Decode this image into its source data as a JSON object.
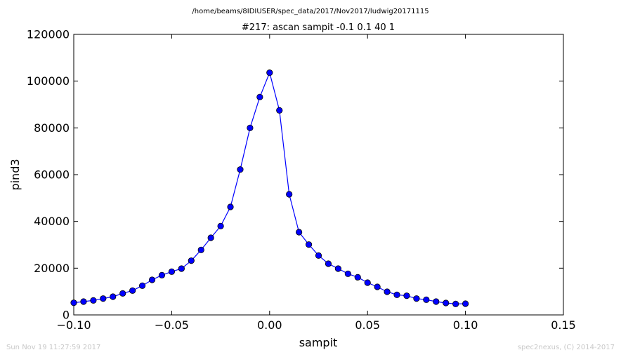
{
  "header": {
    "path": "/home/beams/8IDIUSER/spec_data/2017/Nov2017/ludwig20171115"
  },
  "footer": {
    "timestamp": "Sun Nov 19 11:27:59 2017",
    "credit": "spec2nexus, (C) 2014-2017"
  },
  "chart_data": {
    "type": "line",
    "title": "#217: ascan  sampit -0.1 0.1  40 1",
    "xlabel": "sampit",
    "ylabel": "pind3",
    "xlim": [
      -0.1,
      0.15
    ],
    "ylim": [
      0,
      120000
    ],
    "x_ticks": [
      -0.1,
      -0.05,
      0.0,
      0.05,
      0.1,
      0.15
    ],
    "x_tick_labels": [
      "−0.10",
      "−0.05",
      "0.00",
      "0.05",
      "0.10",
      "0.15"
    ],
    "y_ticks": [
      0,
      20000,
      40000,
      60000,
      80000,
      100000,
      120000
    ],
    "y_tick_labels": [
      "0",
      "20000",
      "40000",
      "60000",
      "80000",
      "100000",
      "120000"
    ],
    "grid": false,
    "series": [
      {
        "color": "#0000ff",
        "marker": "circle",
        "x": [
          -0.1,
          -0.095,
          -0.09,
          -0.085,
          -0.08,
          -0.075,
          -0.07,
          -0.065,
          -0.06,
          -0.055,
          -0.05,
          -0.045,
          -0.04,
          -0.035,
          -0.03,
          -0.025,
          -0.02,
          -0.015,
          -0.01,
          -0.005,
          0.0,
          0.005,
          0.01,
          0.015,
          0.02,
          0.025,
          0.03,
          0.035,
          0.04,
          0.045,
          0.05,
          0.055,
          0.06,
          0.065,
          0.07,
          0.075,
          0.08,
          0.085,
          0.09,
          0.095,
          0.1
        ],
        "y": [
          5200,
          5700,
          6200,
          7000,
          7800,
          9200,
          10400,
          12500,
          15000,
          17000,
          18500,
          19800,
          23200,
          27800,
          33000,
          38000,
          46200,
          62200,
          80000,
          93200,
          103600,
          87500,
          51600,
          35400,
          30100,
          25400,
          21900,
          19800,
          17600,
          16100,
          13800,
          12000,
          9900,
          8600,
          8200,
          7000,
          6500,
          5700,
          5100,
          4700,
          4800
        ]
      }
    ]
  }
}
